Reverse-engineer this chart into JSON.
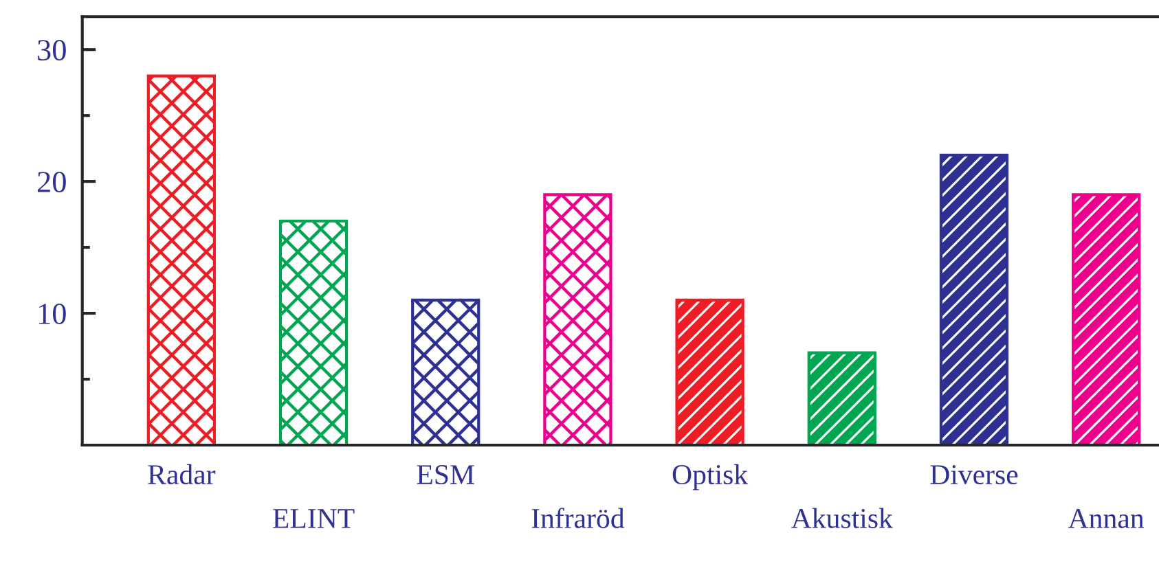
{
  "chart_data": {
    "type": "bar",
    "categories": [
      "Radar",
      "ELINT",
      "ESM",
      "Infraröd",
      "Optisk",
      "Akustisk",
      "Diverse",
      "Annan"
    ],
    "series": [
      {
        "colors": [
          "#ee1c24",
          "#00a651",
          "#2e3192",
          "#ec008c",
          null,
          null,
          null,
          null
        ],
        "values": [
          28,
          17,
          11,
          19,
          null,
          null,
          null,
          null
        ]
      },
      {
        "colors": [
          null,
          null,
          null,
          null,
          "#ee1c24",
          "#00a651",
          "#2e3192",
          "#ec008c"
        ],
        "values": [
          null,
          null,
          null,
          null,
          11,
          7,
          22,
          19
        ]
      }
    ],
    "ylim": [
      0,
      32.5
    ],
    "yticks": [
      {
        "value": 5,
        "label": null
      },
      10,
      {
        "value": 15,
        "label": null
      },
      20,
      {
        "value": 25,
        "label": null
      },
      30
    ],
    "grid": false,
    "legend": false
  }
}
